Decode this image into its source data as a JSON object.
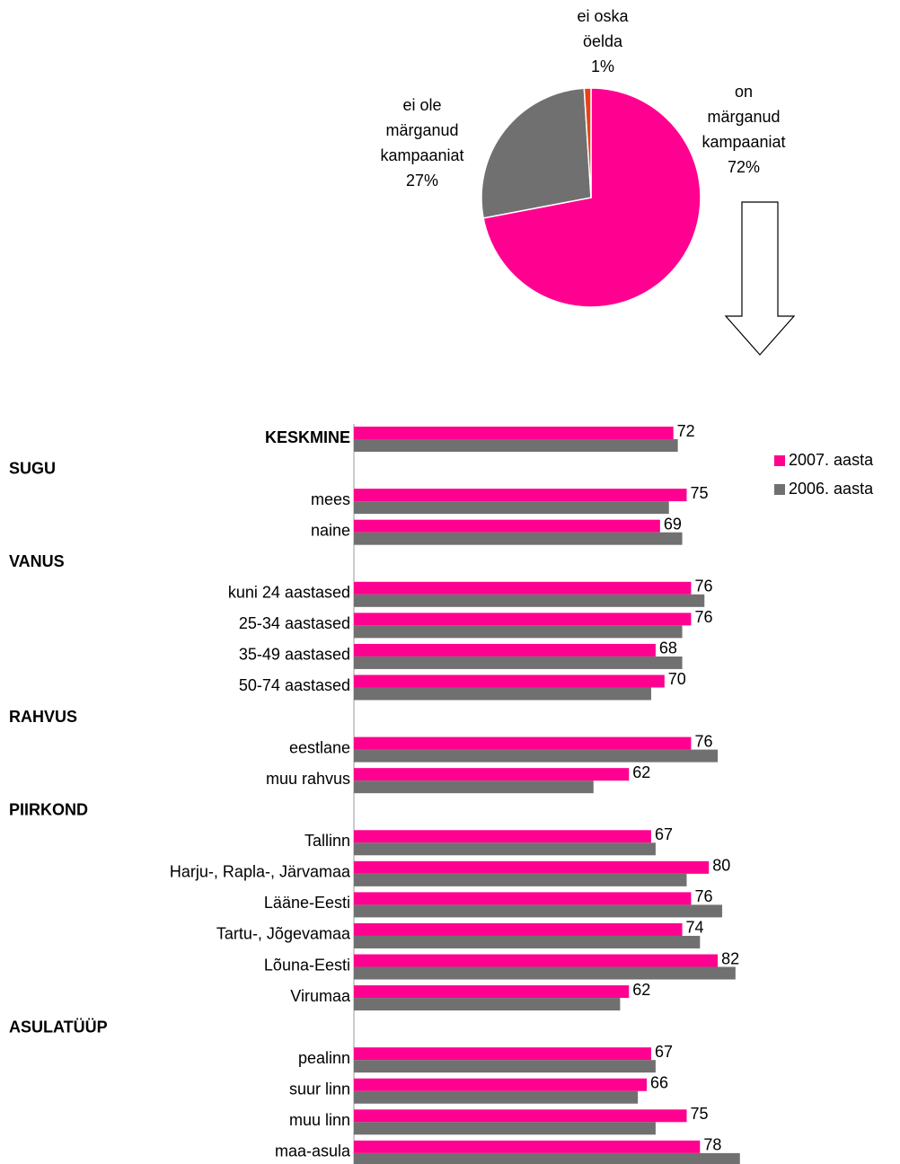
{
  "chart_data": [
    {
      "type": "pie",
      "categories": [
        "on märganud kampaaniat",
        "ei ole märganud kampaaniat",
        "ei oska öelda"
      ],
      "values": [
        72,
        27,
        1
      ],
      "value_labels": [
        "72%",
        "27%",
        "1%"
      ],
      "colors": [
        "#ff0090",
        "#707070",
        "#e8401c"
      ]
    },
    {
      "type": "bar",
      "orientation": "horizontal",
      "categories": [
        "KESKMINE",
        "SUGU",
        "mees",
        "naine",
        "VANUS",
        "kuni 24 aastased",
        "25-34 aastased",
        "35-49 aastased",
        "50-74 aastased",
        "RAHVUS",
        "eestlane",
        "muu rahvus",
        "PIIRKOND",
        "Tallinn",
        "Harju-, Rapla-, Järvamaa",
        "Lääne-Eesti",
        "Tartu-, Jõgevamaa",
        "Lõuna-Eesti",
        "Virumaa",
        "ASULATÜÜP",
        "pealinn",
        "suur linn",
        "muu linn",
        "maa-asula"
      ],
      "series": [
        {
          "name": "2007. aasta",
          "color": "#ff0090",
          "values": [
            72,
            null,
            75,
            69,
            null,
            76,
            76,
            68,
            70,
            null,
            76,
            62,
            null,
            67,
            80,
            76,
            74,
            82,
            62,
            null,
            67,
            66,
            75,
            78
          ]
        },
        {
          "name": "2006. aasta",
          "color": "#707070",
          "values": [
            73,
            null,
            71,
            74,
            null,
            79,
            74,
            74,
            67,
            null,
            82,
            54,
            null,
            68,
            75,
            83,
            78,
            86,
            60,
            null,
            68,
            64,
            68,
            87
          ]
        }
      ],
      "xlim": [
        0,
        100
      ],
      "legend": "right"
    }
  ]
}
